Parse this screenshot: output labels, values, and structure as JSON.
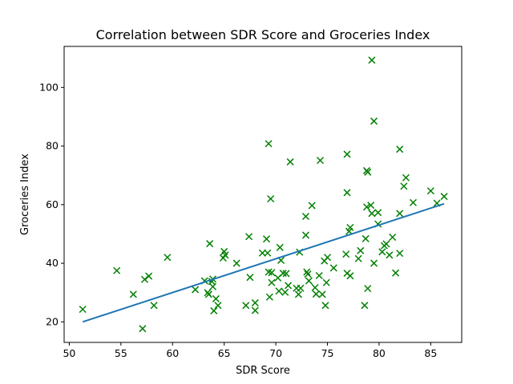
{
  "chart_data": {
    "type": "scatter",
    "title": "Correlation between SDR Score and Groceries Index",
    "xlabel": "SDR Score",
    "ylabel": "Groceries Index",
    "xlim": [
      49.5,
      88.0
    ],
    "ylim": [
      13.0,
      114.0
    ],
    "xticks": [
      50,
      55,
      60,
      65,
      70,
      75,
      80,
      85
    ],
    "yticks": [
      20,
      40,
      60,
      80,
      100
    ],
    "grid": false,
    "colors": {
      "points": "#008000",
      "trendline": "#1f77b4"
    },
    "marker": "x",
    "trendline": {
      "x": [
        51.3,
        86.3
      ],
      "y": [
        20.0,
        60.3
      ]
    },
    "series": [
      {
        "points": [
          [
            51.3,
            24.3
          ],
          [
            54.6,
            37.5
          ],
          [
            56.2,
            29.4
          ],
          [
            57.1,
            17.7
          ],
          [
            57.3,
            34.5
          ],
          [
            57.7,
            35.6
          ],
          [
            58.2,
            25.6
          ],
          [
            59.5,
            42.0
          ],
          [
            62.2,
            31.0
          ],
          [
            63.1,
            34.0
          ],
          [
            63.4,
            30.0
          ],
          [
            63.5,
            29.4
          ],
          [
            63.6,
            46.7
          ],
          [
            63.8,
            33.8
          ],
          [
            63.9,
            34.6
          ],
          [
            63.9,
            32.0
          ],
          [
            64.0,
            23.8
          ],
          [
            64.2,
            27.9
          ],
          [
            64.4,
            25.6
          ],
          [
            64.9,
            41.8
          ],
          [
            65.0,
            44.0
          ],
          [
            65.1,
            42.8
          ],
          [
            66.2,
            40.0
          ],
          [
            67.1,
            25.6
          ],
          [
            67.4,
            49.1
          ],
          [
            67.5,
            35.2
          ],
          [
            68.0,
            26.5
          ],
          [
            68.0,
            23.9
          ],
          [
            68.7,
            43.5
          ],
          [
            69.1,
            48.3
          ],
          [
            69.2,
            43.5
          ],
          [
            69.3,
            80.8
          ],
          [
            69.3,
            37.0
          ],
          [
            69.4,
            28.5
          ],
          [
            69.5,
            62.0
          ],
          [
            69.6,
            33.4
          ],
          [
            69.6,
            36.8
          ],
          [
            70.2,
            35.0
          ],
          [
            70.3,
            30.5
          ],
          [
            70.4,
            45.4
          ],
          [
            70.5,
            41.0
          ],
          [
            70.7,
            36.6
          ],
          [
            70.9,
            30.1
          ],
          [
            71.0,
            36.5
          ],
          [
            71.2,
            32.4
          ],
          [
            71.4,
            74.6
          ],
          [
            72.0,
            31.5
          ],
          [
            72.2,
            29.4
          ],
          [
            72.3,
            43.8
          ],
          [
            72.4,
            31.5
          ],
          [
            72.9,
            49.6
          ],
          [
            72.9,
            56.0
          ],
          [
            73.0,
            37.0
          ],
          [
            73.1,
            36.3
          ],
          [
            73.2,
            34.0
          ],
          [
            73.5,
            59.7
          ],
          [
            73.8,
            31.7
          ],
          [
            73.9,
            29.5
          ],
          [
            74.2,
            35.8
          ],
          [
            74.3,
            75.1
          ],
          [
            74.5,
            29.4
          ],
          [
            74.7,
            40.8
          ],
          [
            74.8,
            25.6
          ],
          [
            74.9,
            33.4
          ],
          [
            75.0,
            42.0
          ],
          [
            75.6,
            38.4
          ],
          [
            76.8,
            43.1
          ],
          [
            76.9,
            64.1
          ],
          [
            76.9,
            77.2
          ],
          [
            76.9,
            36.6
          ],
          [
            77.1,
            50.9
          ],
          [
            77.2,
            52.2
          ],
          [
            77.2,
            35.7
          ],
          [
            78.0,
            41.6
          ],
          [
            78.2,
            44.3
          ],
          [
            78.6,
            25.6
          ],
          [
            78.7,
            48.4
          ],
          [
            78.8,
            59.2
          ],
          [
            78.8,
            71.6
          ],
          [
            78.9,
            71.1
          ],
          [
            78.9,
            31.4
          ],
          [
            79.2,
            59.8
          ],
          [
            79.3,
            57.0
          ],
          [
            79.3,
            109.3
          ],
          [
            79.5,
            88.5
          ],
          [
            79.5,
            40.0
          ],
          [
            79.9,
            57.3
          ],
          [
            79.9,
            53.4
          ],
          [
            80.3,
            43.9
          ],
          [
            80.5,
            46.0
          ],
          [
            80.7,
            46.6
          ],
          [
            81.0,
            42.8
          ],
          [
            81.3,
            48.9
          ],
          [
            81.6,
            36.7
          ],
          [
            82.0,
            78.9
          ],
          [
            82.0,
            57.0
          ],
          [
            82.0,
            43.4
          ],
          [
            82.4,
            66.3
          ],
          [
            82.6,
            69.2
          ],
          [
            83.3,
            60.7
          ],
          [
            85.0,
            64.7
          ],
          [
            85.6,
            60.5
          ],
          [
            86.3,
            62.8
          ]
        ]
      }
    ]
  }
}
